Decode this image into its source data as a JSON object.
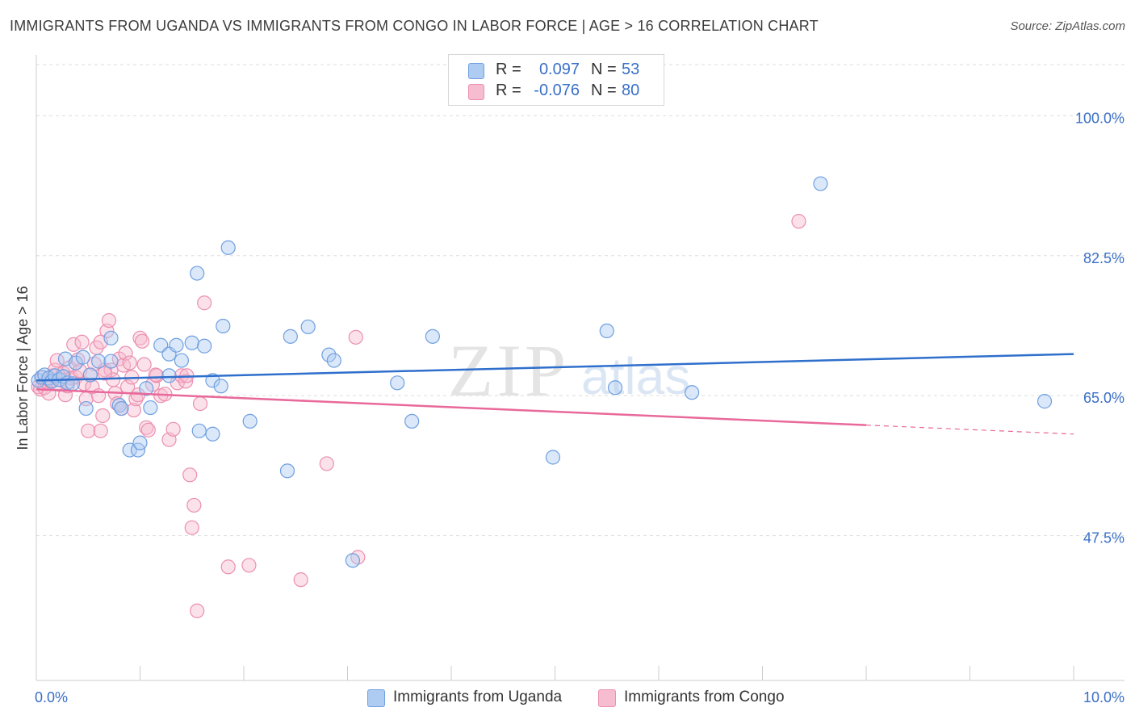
{
  "title": "IMMIGRANTS FROM UGANDA VS IMMIGRANTS FROM CONGO IN LABOR FORCE | AGE > 16 CORRELATION CHART",
  "source": "Source: ZipAtlas.com",
  "watermark": {
    "zip": "ZIP",
    "atlas": "atlas"
  },
  "legend": {
    "uganda": {
      "r_label": "R =",
      "r_value": "0.097",
      "n_label": "N =",
      "n_value": "53"
    },
    "congo": {
      "r_label": "R =",
      "r_value": "-0.076",
      "n_label": "N =",
      "n_value": "80"
    }
  },
  "bottom_legend": {
    "uganda": "Immigrants from Uganda",
    "congo": "Immigrants from Congo"
  },
  "colors": {
    "uganda_fill": "#aecbf2",
    "uganda_stroke": "#6f9fe0",
    "uganda_line": "#2f6fcc",
    "congo_fill": "#f6bcd0",
    "congo_stroke": "#ec8fb0",
    "congo_line": "#e8699a",
    "tick_label": "#3a6fc7",
    "grid": "#dddddd"
  },
  "chart_data": {
    "type": "scatter",
    "title": "IMMIGRANTS FROM UGANDA VS IMMIGRANTS FROM CONGO IN LABOR FORCE | AGE > 16 CORRELATION CHART",
    "xlabel": "",
    "ylabel": "In Labor Force | Age > 16",
    "xlim": [
      0,
      10
    ],
    "ylim": [
      29.4,
      107.6
    ],
    "x_tick_labels": [
      "0.0%",
      "10.0%"
    ],
    "y_ticks": [
      47.5,
      65.0,
      82.5,
      100.0
    ],
    "y_tick_labels": [
      "47.5%",
      "65.0%",
      "82.5%",
      "100.0%"
    ],
    "grid": true,
    "legend_position": "top-center",
    "series": [
      {
        "name": "Immigrants from Uganda",
        "points": [
          [
            0.02,
            66.9
          ],
          [
            0.05,
            67.3
          ],
          [
            0.08,
            67.6
          ],
          [
            0.12,
            67.2
          ],
          [
            0.15,
            66.8
          ],
          [
            0.18,
            67.5
          ],
          [
            0.22,
            67.0
          ],
          [
            0.26,
            67.4
          ],
          [
            0.3,
            66.6
          ],
          [
            0.35,
            66.5
          ],
          [
            0.28,
            69.6
          ],
          [
            0.38,
            69.1
          ],
          [
            0.45,
            69.8
          ],
          [
            0.52,
            67.6
          ],
          [
            0.6,
            69.3
          ],
          [
            0.72,
            69.3
          ],
          [
            0.48,
            63.4
          ],
          [
            0.8,
            63.8
          ],
          [
            0.82,
            63.4
          ],
          [
            1.06,
            65.9
          ],
          [
            1.1,
            63.5
          ],
          [
            0.72,
            72.2
          ],
          [
            1.2,
            71.3
          ],
          [
            1.28,
            70.2
          ],
          [
            1.35,
            71.3
          ],
          [
            1.4,
            69.4
          ],
          [
            1.5,
            71.6
          ],
          [
            1.55,
            80.3
          ],
          [
            1.62,
            71.2
          ],
          [
            1.7,
            66.9
          ],
          [
            1.8,
            73.7
          ],
          [
            1.78,
            66.2
          ],
          [
            1.57,
            60.6
          ],
          [
            1.7,
            60.2
          ],
          [
            1.85,
            83.5
          ],
          [
            2.06,
            61.8
          ],
          [
            1.28,
            67.5
          ],
          [
            0.9,
            58.2
          ],
          [
            0.98,
            58.2
          ],
          [
            1.0,
            59.1
          ],
          [
            2.42,
            55.6
          ],
          [
            2.45,
            72.4
          ],
          [
            2.62,
            73.6
          ],
          [
            2.82,
            70.1
          ],
          [
            2.87,
            69.4
          ],
          [
            3.05,
            44.4
          ],
          [
            3.48,
            66.6
          ],
          [
            3.62,
            61.8
          ],
          [
            3.82,
            72.4
          ],
          [
            4.98,
            57.3
          ],
          [
            5.5,
            73.1
          ],
          [
            5.58,
            66.0
          ],
          [
            6.32,
            65.4
          ],
          [
            7.56,
            91.5
          ],
          [
            9.72,
            64.3
          ]
        ]
      },
      {
        "name": "Immigrants from Congo",
        "points": [
          [
            0.02,
            66.1
          ],
          [
            0.04,
            65.8
          ],
          [
            0.06,
            67.3
          ],
          [
            0.08,
            66.0
          ],
          [
            0.1,
            66.7
          ],
          [
            0.12,
            65.3
          ],
          [
            0.14,
            66.8
          ],
          [
            0.16,
            67.5
          ],
          [
            0.18,
            68.2
          ],
          [
            0.2,
            69.4
          ],
          [
            0.22,
            66.4
          ],
          [
            0.24,
            67.0
          ],
          [
            0.26,
            67.8
          ],
          [
            0.28,
            65.1
          ],
          [
            0.3,
            66.2
          ],
          [
            0.32,
            68.5
          ],
          [
            0.34,
            67.2
          ],
          [
            0.36,
            71.4
          ],
          [
            0.38,
            67.3
          ],
          [
            0.4,
            69.5
          ],
          [
            0.42,
            68.1
          ],
          [
            0.44,
            71.7
          ],
          [
            0.46,
            66.5
          ],
          [
            0.48,
            64.6
          ],
          [
            0.5,
            60.6
          ],
          [
            0.52,
            67.6
          ],
          [
            0.54,
            66.1
          ],
          [
            0.56,
            69.0
          ],
          [
            0.58,
            71.0
          ],
          [
            0.6,
            65.0
          ],
          [
            0.62,
            60.6
          ],
          [
            0.64,
            62.5
          ],
          [
            0.66,
            68.2
          ],
          [
            0.68,
            73.1
          ],
          [
            0.7,
            74.4
          ],
          [
            0.72,
            68.2
          ],
          [
            0.74,
            67.0
          ],
          [
            0.76,
            65.3
          ],
          [
            0.78,
            64.0
          ],
          [
            0.8,
            69.6
          ],
          [
            0.82,
            63.4
          ],
          [
            0.84,
            68.8
          ],
          [
            0.86,
            70.3
          ],
          [
            0.88,
            66.1
          ],
          [
            0.9,
            69.1
          ],
          [
            0.92,
            67.3
          ],
          [
            0.94,
            63.2
          ],
          [
            0.96,
            64.6
          ],
          [
            0.98,
            65.1
          ],
          [
            1.0,
            72.2
          ],
          [
            1.02,
            71.8
          ],
          [
            1.04,
            68.9
          ],
          [
            1.06,
            61.0
          ],
          [
            1.08,
            60.7
          ],
          [
            1.12,
            66.4
          ],
          [
            1.16,
            67.5
          ],
          [
            1.2,
            65.0
          ],
          [
            1.24,
            65.2
          ],
          [
            1.28,
            59.5
          ],
          [
            1.32,
            60.8
          ],
          [
            1.36,
            66.6
          ],
          [
            1.4,
            67.5
          ],
          [
            1.44,
            66.8
          ],
          [
            1.48,
            55.1
          ],
          [
            1.52,
            51.3
          ],
          [
            1.5,
            48.5
          ],
          [
            1.58,
            64.0
          ],
          [
            1.62,
            76.6
          ],
          [
            1.45,
            67.5
          ],
          [
            1.15,
            67.6
          ],
          [
            1.85,
            43.6
          ],
          [
            2.05,
            43.8
          ],
          [
            1.55,
            38.1
          ],
          [
            2.55,
            42.0
          ],
          [
            2.8,
            56.5
          ],
          [
            3.1,
            44.8
          ],
          [
            3.08,
            72.3
          ],
          [
            7.35,
            86.8
          ],
          [
            0.62,
            71.7
          ],
          [
            0.66,
            67.8
          ]
        ]
      }
    ],
    "trendlines": [
      {
        "series": "Immigrants from Uganda",
        "x": [
          0,
          10
        ],
        "y": [
          66.9,
          70.2
        ]
      },
      {
        "series": "Immigrants from Congo",
        "x": [
          0,
          10
        ],
        "y": [
          65.8,
          60.2
        ],
        "solid_until_x": 8.0
      }
    ]
  }
}
